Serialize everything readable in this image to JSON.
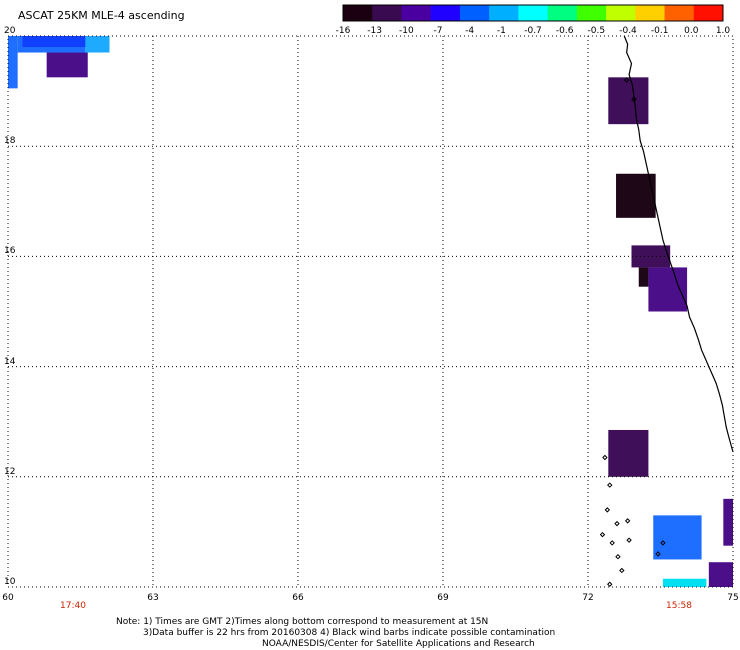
{
  "title": "ASCAT 25KM MLE-4 ascending",
  "colorbar": {
    "labels": [
      "-16",
      "-13",
      "-10",
      "-7",
      "-4",
      "-1",
      "-0.7",
      "-0.6",
      "-0.5",
      "-0.4",
      "-0.1",
      "0.0",
      "1.0"
    ],
    "colors": [
      "#1a0010",
      "#3a0a50",
      "#4a00a0",
      "#2000ff",
      "#0060ff",
      "#00b0ff",
      "#00ffff",
      "#00ff80",
      "#40ff00",
      "#c0ff00",
      "#ffd000",
      "#ff6000",
      "#ff1000"
    ]
  },
  "axes": {
    "lon_ticks": [
      "60",
      "63",
      "66",
      "69",
      "72",
      "75"
    ],
    "lat_ticks": [
      "20",
      "18",
      "16",
      "14",
      "12",
      "10"
    ],
    "lon_range": [
      60,
      75
    ],
    "lat_range": [
      10,
      20
    ]
  },
  "time_labels": {
    "left": "17:40",
    "right": "15:58"
  },
  "notes": [
    "Note: 1) Times are GMT 2)Times along bottom correspond to measurement at 15N",
    "3)Data buffer is 22 hrs from 20160308 4) Black wind barbs indicate possible contamination",
    "NOAA/NESDIS/Center for Satellite Applications and Research"
  ],
  "map_data": {
    "cells": [
      {
        "lon0": 60.0,
        "lat0": 19.05,
        "lon1": 60.2,
        "lat1": 20.0,
        "value": -4,
        "color": "#1e6eff"
      },
      {
        "lon0": 60.2,
        "lat0": 19.7,
        "lon1": 61.6,
        "lat1": 20.0,
        "value": -7,
        "color": "#1e6eff"
      },
      {
        "lon0": 60.3,
        "lat0": 19.8,
        "lon1": 61.7,
        "lat1": 20.0,
        "value": -10,
        "color": "#1240ff"
      },
      {
        "lon0": 60.8,
        "lat0": 19.25,
        "lon1": 61.65,
        "lat1": 19.7,
        "value": -13,
        "color": "#4b0f8a"
      },
      {
        "lon0": 61.6,
        "lat0": 19.7,
        "lon1": 62.1,
        "lat1": 20.0,
        "value": -1,
        "color": "#1eaaff"
      },
      {
        "lon0": 72.42,
        "lat0": 18.4,
        "lon1": 73.25,
        "lat1": 19.25,
        "value": -13,
        "color": "#3f0f5a"
      },
      {
        "lon0": 72.58,
        "lat0": 16.7,
        "lon1": 73.4,
        "lat1": 17.5,
        "value": -16,
        "color": "#1e0818"
      },
      {
        "lon0": 72.9,
        "lat0": 15.8,
        "lon1": 73.7,
        "lat1": 16.2,
        "value": -13,
        "color": "#3f0f5a"
      },
      {
        "lon0": 73.05,
        "lat0": 15.45,
        "lon1": 73.25,
        "lat1": 15.8,
        "value": -16,
        "color": "#1e0818"
      },
      {
        "lon0": 73.25,
        "lat0": 15.0,
        "lon1": 74.05,
        "lat1": 15.8,
        "value": -13,
        "color": "#4b0f8a"
      },
      {
        "lon0": 72.42,
        "lat0": 12.0,
        "lon1": 73.25,
        "lat1": 12.85,
        "value": -13,
        "color": "#3f0f5a"
      },
      {
        "lon0": 73.35,
        "lat0": 10.5,
        "lon1": 74.35,
        "lat1": 11.3,
        "value": -4,
        "color": "#1e6eff"
      },
      {
        "lon0": 74.8,
        "lat0": 10.75,
        "lon1": 75.0,
        "lat1": 11.6,
        "value": -13,
        "color": "#4b0f8a"
      },
      {
        "lon0": 73.55,
        "lat0": 10.0,
        "lon1": 74.45,
        "lat1": 10.15,
        "value": -0.7,
        "color": "#00e0f0"
      },
      {
        "lon0": 74.5,
        "lat0": 10.0,
        "lon1": 75.0,
        "lat1": 10.45,
        "value": -13,
        "color": "#4b0f8a"
      }
    ],
    "coastline": [
      [
        72.75,
        20.0
      ],
      [
        72.82,
        19.85
      ],
      [
        72.8,
        19.7
      ],
      [
        72.9,
        19.5
      ],
      [
        72.85,
        19.3
      ],
      [
        72.92,
        19.1
      ],
      [
        72.95,
        18.9
      ],
      [
        72.98,
        18.7
      ],
      [
        73.0,
        18.5
      ],
      [
        73.05,
        18.3
      ],
      [
        73.08,
        18.1
      ],
      [
        73.15,
        17.9
      ],
      [
        73.2,
        17.7
      ],
      [
        73.25,
        17.5
      ],
      [
        73.3,
        17.3
      ],
      [
        73.35,
        17.1
      ],
      [
        73.4,
        16.9
      ],
      [
        73.45,
        16.7
      ],
      [
        73.5,
        16.5
      ],
      [
        73.55,
        16.3
      ],
      [
        73.62,
        16.1
      ],
      [
        73.7,
        15.9
      ],
      [
        73.78,
        15.7
      ],
      [
        73.85,
        15.5
      ],
      [
        73.95,
        15.3
      ],
      [
        74.05,
        15.1
      ],
      [
        74.1,
        14.9
      ],
      [
        74.2,
        14.7
      ],
      [
        74.28,
        14.5
      ],
      [
        74.35,
        14.3
      ],
      [
        74.45,
        14.1
      ],
      [
        74.55,
        13.9
      ],
      [
        74.65,
        13.7
      ],
      [
        74.72,
        13.5
      ],
      [
        74.78,
        13.3
      ],
      [
        74.82,
        13.1
      ],
      [
        74.86,
        12.9
      ],
      [
        74.92,
        12.7
      ],
      [
        75.0,
        12.45
      ]
    ],
    "islands": [
      [
        72.35,
        12.35
      ],
      [
        72.4,
        11.4
      ],
      [
        72.6,
        11.15
      ],
      [
        72.82,
        11.2
      ],
      [
        72.3,
        10.95
      ],
      [
        72.5,
        10.8
      ],
      [
        72.85,
        10.85
      ],
      [
        72.62,
        10.55
      ],
      [
        72.7,
        10.3
      ],
      [
        72.45,
        10.05
      ],
      [
        73.55,
        10.8
      ],
      [
        73.45,
        10.6
      ],
      [
        72.45,
        11.85
      ],
      [
        72.8,
        19.2
      ],
      [
        72.95,
        18.85
      ]
    ]
  }
}
